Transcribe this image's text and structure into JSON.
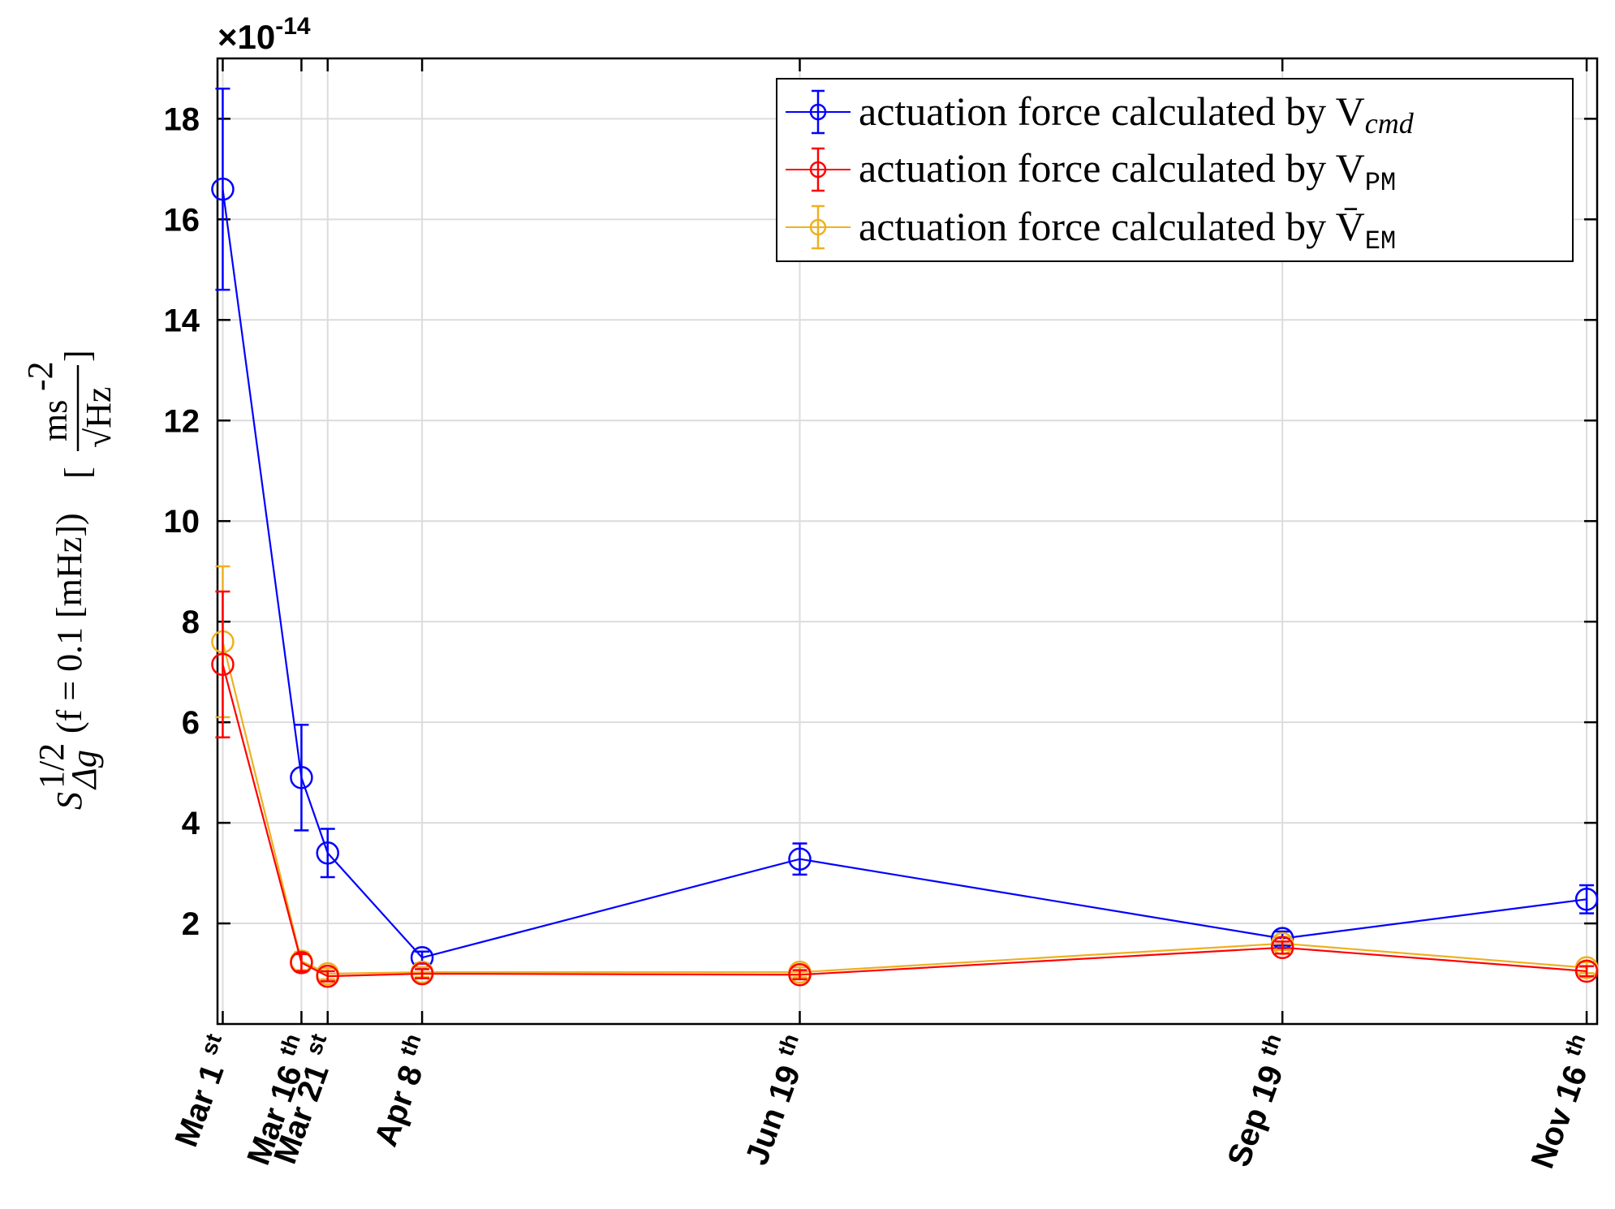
{
  "chart_data": {
    "type": "line",
    "exponent_label": "×10",
    "exponent_power": "-14",
    "ylabel": {
      "symbol": "S",
      "sup": "1/2",
      "sub": "Δg",
      "condition": "(f = 0.1  [mHz])",
      "unit_num": "ms",
      "unit_num_sup": "-2",
      "unit_den": "√Hz"
    },
    "xlabel": "",
    "ylim": [
      0,
      19.2
    ],
    "yticks": [
      2,
      4,
      6,
      8,
      10,
      12,
      14,
      16,
      18
    ],
    "ytick_labels": [
      "2",
      "4",
      "6",
      "8",
      "10",
      "12",
      "14",
      "16",
      "18"
    ],
    "x_dates": [
      "Mar 1",
      "Mar 16",
      "Mar 21",
      "Apr 8",
      "Jun 19",
      "Sep 19",
      "Nov 16"
    ],
    "xlim": [
      "Feb 28",
      "Nov 18"
    ],
    "xtick_labels": [
      {
        "main": "Mar 1",
        "suffix": "st"
      },
      {
        "main": "Mar 16",
        "suffix": "th"
      },
      {
        "main": "Mar 21",
        "suffix": "st"
      },
      {
        "main": "Apr 8",
        "suffix": "th"
      },
      {
        "main": "Jun 19",
        "suffix": "th"
      },
      {
        "main": "Sep 19",
        "suffix": "th"
      },
      {
        "main": "Nov 16",
        "suffix": "th"
      }
    ],
    "grid": true,
    "legend_position": "top-right",
    "series": [
      {
        "name": "actuation force calculated by V",
        "name_sub": "cmd",
        "color": "#0000ff",
        "values": [
          16.6,
          4.9,
          3.4,
          1.32,
          3.28,
          1.7,
          2.48
        ],
        "err": [
          2.0,
          1.05,
          0.48,
          0.12,
          0.31,
          0.14,
          0.28
        ]
      },
      {
        "name": "actuation force calculated by V",
        "name_sub": "PM",
        "color": "#ff0000",
        "values": [
          7.15,
          1.22,
          0.95,
          1.0,
          0.98,
          1.52,
          1.05
        ],
        "err": [
          1.45,
          0.17,
          0.1,
          0.09,
          0.09,
          0.12,
          0.1
        ]
      },
      {
        "name": "actuation force calculated by V̄",
        "name_sub": "EM",
        "color": "#edb120",
        "values": [
          7.6,
          1.25,
          1.0,
          1.03,
          1.03,
          1.6,
          1.12
        ],
        "err": [
          1.5,
          0.18,
          0.11,
          0.1,
          0.1,
          0.13,
          0.11
        ]
      }
    ]
  }
}
